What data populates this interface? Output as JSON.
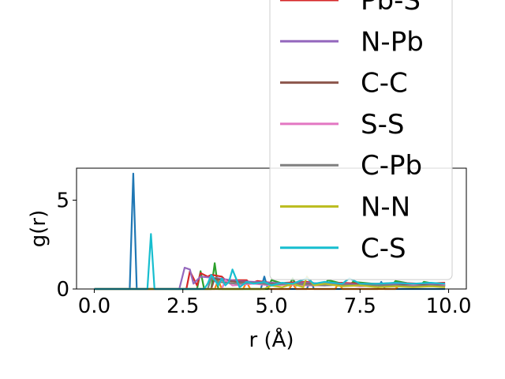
{
  "chart_data": {
    "type": "line",
    "xlabel": "r (Å)",
    "ylabel": "g(r)",
    "xlim": [
      -0.5,
      10.5
    ],
    "ylim": [
      0,
      6.8
    ],
    "xticks": [
      0.0,
      2.5,
      5.0,
      7.5,
      10.0
    ],
    "xtick_labels": [
      "0.0",
      "2.5",
      "5.0",
      "7.5",
      "10.0"
    ],
    "yticks": [
      0,
      5
    ],
    "ytick_labels": [
      "0",
      "5"
    ],
    "grid": false,
    "legend_position": "upper-right",
    "series": [
      {
        "name": "",
        "color": "#1f77b4",
        "x": [
          0,
          1.0,
          1.1,
          1.2,
          1.3,
          4.7,
          4.8,
          4.9,
          6.0,
          6.1,
          6.2,
          8.0,
          8.1,
          8.2,
          9.9
        ],
        "y": [
          0,
          0,
          6.5,
          0,
          0,
          0,
          0.7,
          0,
          0,
          0.5,
          0,
          0,
          0.4,
          0,
          0
        ]
      },
      {
        "name": "",
        "color": "#ff7f0e",
        "x": [
          0,
          3.4,
          3.5,
          3.6,
          4.2,
          4.3,
          4.4,
          5.5,
          5.6,
          5.7,
          6.8,
          6.9,
          7.0,
          8.5,
          8.6,
          9.9
        ],
        "y": [
          0,
          0,
          0.5,
          0,
          0,
          0.4,
          0,
          0,
          0.3,
          0,
          0,
          0.35,
          0,
          0,
          0.2,
          0.2
        ]
      },
      {
        "name": "",
        "color": "#2ca02c",
        "x": [
          0,
          2.9,
          3.0,
          3.1,
          3.3,
          3.4,
          3.5,
          4.9,
          5.0,
          5.5,
          5.6,
          5.7,
          6.5,
          6.6,
          7.2,
          7.3,
          8.4,
          8.5,
          9.2,
          9.3,
          9.9
        ],
        "y": [
          0,
          0,
          1.0,
          0,
          0,
          1.45,
          0,
          0,
          0.5,
          0.2,
          0.6,
          0.2,
          0.3,
          0.5,
          0.2,
          0.4,
          0.2,
          0.45,
          0.2,
          0.4,
          0.2
        ]
      },
      {
        "name": "Pb-S",
        "color": "#d62728",
        "x": [
          0,
          2.6,
          2.7,
          2.9,
          3.0,
          3.2,
          3.3,
          3.6,
          3.7,
          4.3,
          4.4,
          4.6,
          5.2,
          5.4,
          6.0,
          6.3,
          7.0,
          7.5,
          8.0,
          8.6,
          9.2,
          9.9
        ],
        "y": [
          0,
          0,
          1.0,
          0.2,
          0.9,
          0.7,
          0.8,
          0.7,
          0.5,
          0.5,
          0.3,
          0.45,
          0.3,
          0.35,
          0.4,
          0.3,
          0.35,
          0.3,
          0.3,
          0.35,
          0.3,
          0.35
        ]
      },
      {
        "name": "N-Pb",
        "color": "#9467bd",
        "x": [
          0,
          2.4,
          2.55,
          2.7,
          2.8,
          3.0,
          3.5,
          4.0,
          4.5,
          5.0,
          5.5,
          6.0,
          6.5,
          7.0,
          7.5,
          8.0,
          8.5,
          9.0,
          9.5,
          9.9
        ],
        "y": [
          0,
          0,
          1.2,
          1.1,
          0.3,
          0.7,
          0.6,
          0.45,
          0.4,
          0.35,
          0.3,
          0.35,
          0.3,
          0.3,
          0.25,
          0.3,
          0.25,
          0.3,
          0.25,
          0.3
        ]
      },
      {
        "name": "C-C",
        "color": "#8c564b",
        "x": [
          0,
          3.3,
          3.4,
          3.6,
          4.0,
          4.5,
          5.0,
          5.5,
          6.0,
          6.5,
          7.0,
          7.5,
          8.0,
          8.5,
          9.0,
          9.5,
          9.9
        ],
        "y": [
          0,
          0,
          0.6,
          0.5,
          0.4,
          0.35,
          0.3,
          0.25,
          0.3,
          0.25,
          0.2,
          0.25,
          0.2,
          0.2,
          0.25,
          0.2,
          0.2
        ]
      },
      {
        "name": "S-S",
        "color": "#e377c2",
        "x": [
          0,
          3.6,
          3.7,
          3.9,
          4.5,
          5.0,
          5.5,
          6.0,
          6.5,
          7.0,
          7.5,
          8.0,
          8.5,
          9.0,
          9.5,
          9.9
        ],
        "y": [
          0,
          0,
          0.5,
          0.2,
          0.3,
          0.2,
          0.25,
          0.2,
          0.2,
          0.25,
          0.15,
          0.2,
          0.15,
          0.2,
          0.15,
          0.2
        ]
      },
      {
        "name": "C-Pb",
        "color": "#7f7f7f",
        "x": [
          0,
          3.2,
          3.3,
          3.5,
          4.0,
          4.5,
          5.0,
          5.5,
          6.0,
          6.5,
          7.0,
          7.5,
          8.0,
          8.5,
          9.0,
          9.5,
          9.9
        ],
        "y": [
          0,
          0,
          0.6,
          0.4,
          0.3,
          0.35,
          0.25,
          0.3,
          0.25,
          0.2,
          0.25,
          0.2,
          0.2,
          0.2,
          0.15,
          0.2,
          0.15
        ]
      },
      {
        "name": "N-N",
        "color": "#bcbd22",
        "x": [
          0,
          4.8,
          5.0,
          5.3,
          5.6,
          5.9,
          6.0,
          6.2,
          6.5,
          7.0,
          7.5,
          8.0,
          8.5,
          9.0,
          9.5,
          9.9
        ],
        "y": [
          0,
          0,
          0.2,
          0.1,
          0.3,
          0.1,
          0.7,
          0.2,
          0.3,
          0.15,
          0.2,
          0.1,
          0.15,
          0.1,
          0.15,
          0.1
        ]
      },
      {
        "name": "C-S",
        "color": "#17becf",
        "x": [
          0,
          1.5,
          1.6,
          1.7,
          3.1,
          3.2,
          3.3,
          3.5,
          3.6,
          3.7,
          3.8,
          3.9,
          4.1,
          4.3,
          4.5,
          4.8,
          5.0,
          5.3,
          5.6,
          6.0,
          6.2,
          6.5,
          7.0,
          7.2,
          7.5,
          8.0,
          8.5,
          9.0,
          9.5,
          9.9
        ],
        "y": [
          0,
          0,
          3.1,
          0,
          0,
          0.3,
          0.8,
          0.2,
          0.6,
          0.2,
          0.4,
          1.1,
          0.1,
          0.4,
          0.3,
          0.4,
          0.2,
          0.35,
          0.3,
          0.6,
          0.3,
          0.4,
          0.3,
          0.6,
          0.3,
          0.3,
          0.35,
          0.3,
          0.35,
          0.3
        ]
      }
    ],
    "legend": [
      "Pb-S",
      "N-Pb",
      "C-C",
      "S-S",
      "C-Pb",
      "N-N",
      "C-S"
    ]
  }
}
